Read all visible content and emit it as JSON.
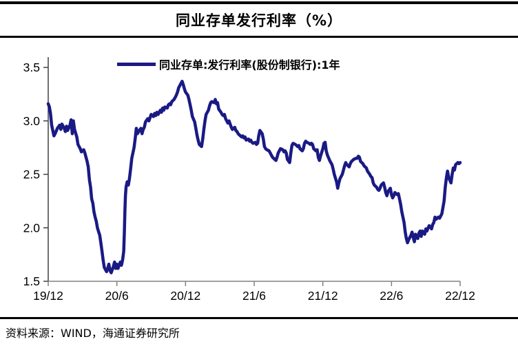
{
  "header": {
    "title": "同业存单发行利率（%）"
  },
  "footer": {
    "source_text": "资料来源：WIND，海通证券研究所"
  },
  "colors": {
    "line": "#1a1a85",
    "y_axis": "#404040",
    "x_axis": "#808080",
    "text": "#000000",
    "border": "#000000"
  },
  "chart_data": {
    "type": "line",
    "title": "同业存单发行利率（%）",
    "legend_position": "top-center",
    "grid": false,
    "x_axis": {
      "tick_labels": [
        "19/12",
        "20/6",
        "20/12",
        "21/6",
        "21/12",
        "22/6",
        "22/12"
      ],
      "tick_positions_months": [
        0,
        6,
        12,
        18,
        24,
        30,
        36
      ],
      "range_months": [
        0,
        36
      ],
      "note": "months since 2019/12"
    },
    "y_axis": {
      "tick_labels": [
        "1.5",
        "2.0",
        "2.5",
        "3.0",
        "3.5"
      ],
      "ticks": [
        1.5,
        2.0,
        2.5,
        3.0,
        3.5
      ],
      "range": [
        1.5,
        3.5
      ],
      "unit": "%"
    },
    "series": [
      {
        "name": "同业存单:发行利率(股份制银行):1年",
        "color": "#1a1a85",
        "points": [
          [
            0,
            3.16
          ],
          [
            0.1,
            3.13
          ],
          [
            0.2,
            3.07
          ],
          [
            0.3,
            2.96
          ],
          [
            0.5,
            2.86
          ],
          [
            0.6,
            2.88
          ],
          [
            0.8,
            2.93
          ],
          [
            1,
            2.96
          ],
          [
            1.1,
            2.92
          ],
          [
            1.2,
            2.97
          ],
          [
            1.4,
            2.93
          ],
          [
            1.5,
            2.9
          ],
          [
            1.6,
            2.95
          ],
          [
            1.7,
            2.91
          ],
          [
            1.9,
            2.96
          ],
          [
            2,
            3.01
          ],
          [
            2.1,
            2.88
          ],
          [
            2.2,
            3
          ],
          [
            2.3,
            2.92
          ],
          [
            2.5,
            2.85
          ],
          [
            2.6,
            2.78
          ],
          [
            2.8,
            2.74
          ],
          [
            2.9,
            2.71
          ],
          [
            3.1,
            2.73
          ],
          [
            3.2,
            2.7
          ],
          [
            3.4,
            2.62
          ],
          [
            3.5,
            2.57
          ],
          [
            3.6,
            2.45
          ],
          [
            3.7,
            2.38
          ],
          [
            3.8,
            2.27
          ],
          [
            3.9,
            2.23
          ],
          [
            4,
            2.15
          ],
          [
            4.1,
            2.1
          ],
          [
            4.2,
            2.06
          ],
          [
            4.3,
            2
          ],
          [
            4.5,
            1.93
          ],
          [
            4.6,
            1.86
          ],
          [
            4.7,
            1.78
          ],
          [
            4.8,
            1.7
          ],
          [
            4.9,
            1.63
          ],
          [
            5.1,
            1.59
          ],
          [
            5.2,
            1.62
          ],
          [
            5.3,
            1.66
          ],
          [
            5.4,
            1.6
          ],
          [
            5.5,
            1.58
          ],
          [
            5.7,
            1.64
          ],
          [
            5.8,
            1.68
          ],
          [
            5.9,
            1.62
          ],
          [
            6,
            1.66
          ],
          [
            6.1,
            1.62
          ],
          [
            6.3,
            1.68
          ],
          [
            6.4,
            1.65
          ],
          [
            6.5,
            1.7
          ],
          [
            6.6,
            1.78
          ],
          [
            6.65,
            1.95
          ],
          [
            6.7,
            2.15
          ],
          [
            6.75,
            2.3
          ],
          [
            6.8,
            2.38
          ],
          [
            6.9,
            2.43
          ],
          [
            7,
            2.4
          ],
          [
            7.1,
            2.46
          ],
          [
            7.2,
            2.55
          ],
          [
            7.3,
            2.65
          ],
          [
            7.5,
            2.75
          ],
          [
            7.6,
            2.83
          ],
          [
            7.7,
            2.93
          ],
          [
            7.8,
            2.88
          ],
          [
            7.9,
            2.9
          ],
          [
            8.1,
            2.93
          ],
          [
            8.2,
            2.88
          ],
          [
            8.3,
            2.92
          ],
          [
            8.4,
            2.94
          ],
          [
            8.5,
            2.99
          ],
          [
            8.7,
            3.02
          ],
          [
            8.8,
            3
          ],
          [
            8.9,
            3.03
          ],
          [
            9,
            3.06
          ],
          [
            9.2,
            3.04
          ],
          [
            9.3,
            3.07
          ],
          [
            9.4,
            3.05
          ],
          [
            9.5,
            3.08
          ],
          [
            9.6,
            3.06
          ],
          [
            9.8,
            3.1
          ],
          [
            9.9,
            3.08
          ],
          [
            10,
            3.12
          ],
          [
            10.1,
            3.1
          ],
          [
            10.2,
            3.13
          ],
          [
            10.4,
            3.12
          ],
          [
            10.5,
            3.15
          ],
          [
            10.6,
            3.16
          ],
          [
            10.7,
            3.15
          ],
          [
            10.8,
            3.18
          ],
          [
            11,
            3.2
          ],
          [
            11.1,
            3.22
          ],
          [
            11.2,
            3.24
          ],
          [
            11.3,
            3.27
          ],
          [
            11.4,
            3.31
          ],
          [
            11.6,
            3.35
          ],
          [
            11.7,
            3.37
          ],
          [
            11.8,
            3.34
          ],
          [
            11.9,
            3.3
          ],
          [
            12,
            3.27
          ],
          [
            12.2,
            3.24
          ],
          [
            12.3,
            3.2
          ],
          [
            12.4,
            3.15
          ],
          [
            12.5,
            3.1
          ],
          [
            12.6,
            3.04
          ],
          [
            12.8,
            2.99
          ],
          [
            12.9,
            2.93
          ],
          [
            13,
            2.87
          ],
          [
            13.1,
            2.82
          ],
          [
            13.2,
            2.78
          ],
          [
            13.4,
            2.76
          ],
          [
            13.5,
            2.83
          ],
          [
            13.6,
            2.92
          ],
          [
            13.7,
            3
          ],
          [
            13.8,
            3.06
          ],
          [
            14,
            3.1
          ],
          [
            14.1,
            3.14
          ],
          [
            14.2,
            3.17
          ],
          [
            14.3,
            3.18
          ],
          [
            14.5,
            3.17
          ],
          [
            14.6,
            3.2
          ],
          [
            14.7,
            3.16
          ],
          [
            14.8,
            3.17
          ],
          [
            14.9,
            3.11
          ],
          [
            15.1,
            3.08
          ],
          [
            15.2,
            3.06
          ],
          [
            15.3,
            3.05
          ],
          [
            15.4,
            3.06
          ],
          [
            15.5,
            3.02
          ],
          [
            15.7,
            2.98
          ],
          [
            15.8,
            3
          ],
          [
            15.9,
            2.97
          ],
          [
            16,
            2.94
          ],
          [
            16.1,
            2.92
          ],
          [
            16.3,
            2.94
          ],
          [
            16.4,
            2.91
          ],
          [
            16.5,
            2.9
          ],
          [
            16.6,
            2.88
          ],
          [
            16.7,
            2.87
          ],
          [
            16.9,
            2.85
          ],
          [
            17,
            2.86
          ],
          [
            17.1,
            2.84
          ],
          [
            17.2,
            2.85
          ],
          [
            17.3,
            2.82
          ],
          [
            17.5,
            2.83
          ],
          [
            17.6,
            2.81
          ],
          [
            17.7,
            2.82
          ],
          [
            17.8,
            2.8
          ],
          [
            17.9,
            2.79
          ],
          [
            18.1,
            2.8
          ],
          [
            18.2,
            2.78
          ],
          [
            18.3,
            2.79
          ],
          [
            18.4,
            2.86
          ],
          [
            18.5,
            2.91
          ],
          [
            18.7,
            2.88
          ],
          [
            18.8,
            2.83
          ],
          [
            18.9,
            2.76
          ],
          [
            19,
            2.74
          ],
          [
            19.1,
            2.73
          ],
          [
            19.3,
            2.72
          ],
          [
            19.4,
            2.7
          ],
          [
            19.5,
            2.68
          ],
          [
            19.6,
            2.66
          ],
          [
            19.8,
            2.64
          ],
          [
            19.9,
            2.63
          ],
          [
            20,
            2.66
          ],
          [
            20.1,
            2.7
          ],
          [
            20.2,
            2.72
          ],
          [
            20.3,
            2.74
          ],
          [
            20.5,
            2.73
          ],
          [
            20.6,
            2.71
          ],
          [
            20.7,
            2.72
          ],
          [
            20.8,
            2.7
          ],
          [
            20.9,
            2.64
          ],
          [
            21.1,
            2.61
          ],
          [
            21.2,
            2.7
          ],
          [
            21.3,
            2.77
          ],
          [
            21.4,
            2.79
          ],
          [
            21.6,
            2.78
          ],
          [
            21.7,
            2.77
          ],
          [
            21.8,
            2.76
          ],
          [
            21.9,
            2.77
          ],
          [
            22,
            2.74
          ],
          [
            22.2,
            2.72
          ],
          [
            22.3,
            2.74
          ],
          [
            22.4,
            2.79
          ],
          [
            22.5,
            2.81
          ],
          [
            22.6,
            2.8
          ],
          [
            22.8,
            2.79
          ],
          [
            22.9,
            2.78
          ],
          [
            23,
            2.79
          ],
          [
            23.1,
            2.78
          ],
          [
            23.2,
            2.74
          ],
          [
            23.4,
            2.72
          ],
          [
            23.5,
            2.73
          ],
          [
            23.6,
            2.66
          ],
          [
            23.7,
            2.63
          ],
          [
            23.8,
            2.67
          ],
          [
            24,
            2.74
          ],
          [
            24.1,
            2.79
          ],
          [
            24.2,
            2.8
          ],
          [
            24.3,
            2.72
          ],
          [
            24.4,
            2.68
          ],
          [
            24.6,
            2.63
          ],
          [
            24.7,
            2.61
          ],
          [
            24.8,
            2.59
          ],
          [
            24.9,
            2.55
          ],
          [
            25,
            2.5
          ],
          [
            25.2,
            2.43
          ],
          [
            25.3,
            2.37
          ],
          [
            25.4,
            2.42
          ],
          [
            25.5,
            2.46
          ],
          [
            25.7,
            2.5
          ],
          [
            25.8,
            2.54
          ],
          [
            25.9,
            2.58
          ],
          [
            26,
            2.61
          ],
          [
            26.1,
            2.59
          ],
          [
            26.3,
            2.57
          ],
          [
            26.4,
            2.6
          ],
          [
            26.5,
            2.62
          ],
          [
            26.6,
            2.63
          ],
          [
            26.7,
            2.64
          ],
          [
            26.9,
            2.65
          ],
          [
            27,
            2.65
          ],
          [
            27.1,
            2.67
          ],
          [
            27.2,
            2.66
          ],
          [
            27.3,
            2.62
          ],
          [
            27.5,
            2.6
          ],
          [
            27.6,
            2.58
          ],
          [
            27.7,
            2.57
          ],
          [
            27.8,
            2.56
          ],
          [
            27.9,
            2.53
          ],
          [
            28.1,
            2.5
          ],
          [
            28.2,
            2.48
          ],
          [
            28.3,
            2.47
          ],
          [
            28.4,
            2.42
          ],
          [
            28.5,
            2.4
          ],
          [
            28.7,
            2.38
          ],
          [
            28.8,
            2.36
          ],
          [
            28.9,
            2.35
          ],
          [
            29,
            2.37
          ],
          [
            29.1,
            2.4
          ],
          [
            29.3,
            2.42
          ],
          [
            29.4,
            2.38
          ],
          [
            29.5,
            2.33
          ],
          [
            29.6,
            2.3
          ],
          [
            29.7,
            2.34
          ],
          [
            29.9,
            2.37
          ],
          [
            30,
            2.31
          ],
          [
            30.1,
            2.28
          ],
          [
            30.2,
            2.3
          ],
          [
            30.3,
            2.33
          ],
          [
            30.5,
            2.31
          ],
          [
            30.6,
            2.32
          ],
          [
            30.7,
            2.27
          ],
          [
            30.8,
            2.22
          ],
          [
            30.9,
            2.15
          ],
          [
            31.1,
            2.05
          ],
          [
            31.2,
            1.96
          ],
          [
            31.3,
            1.9
          ],
          [
            31.4,
            1.86
          ],
          [
            31.5,
            1.89
          ],
          [
            31.7,
            1.93
          ],
          [
            31.8,
            1.96
          ],
          [
            31.9,
            1.91
          ],
          [
            32,
            1.87
          ],
          [
            32.1,
            1.94
          ],
          [
            32.3,
            1.9
          ],
          [
            32.4,
            1.95
          ],
          [
            32.5,
            1.97
          ],
          [
            32.6,
            1.92
          ],
          [
            32.7,
            1.97
          ],
          [
            32.9,
            1.94
          ],
          [
            33,
            1.99
          ],
          [
            33.1,
            1.97
          ],
          [
            33.2,
            2
          ],
          [
            33.3,
            2.02
          ],
          [
            33.5,
            1.99
          ],
          [
            33.6,
            2.03
          ],
          [
            33.7,
            2.05
          ],
          [
            33.8,
            2.1
          ],
          [
            33.9,
            2.08
          ],
          [
            34.1,
            2.1
          ],
          [
            34.2,
            2.09
          ],
          [
            34.3,
            2.11
          ],
          [
            34.4,
            2.13
          ],
          [
            34.6,
            2.25
          ],
          [
            34.7,
            2.38
          ],
          [
            34.8,
            2.47
          ],
          [
            34.9,
            2.53
          ],
          [
            35,
            2.47
          ],
          [
            35.2,
            2.42
          ],
          [
            35.3,
            2.5
          ],
          [
            35.4,
            2.56
          ],
          [
            35.5,
            2.54
          ],
          [
            35.6,
            2.59
          ],
          [
            35.8,
            2.61
          ],
          [
            35.9,
            2.6
          ],
          [
            36,
            2.61
          ]
        ]
      }
    ]
  }
}
